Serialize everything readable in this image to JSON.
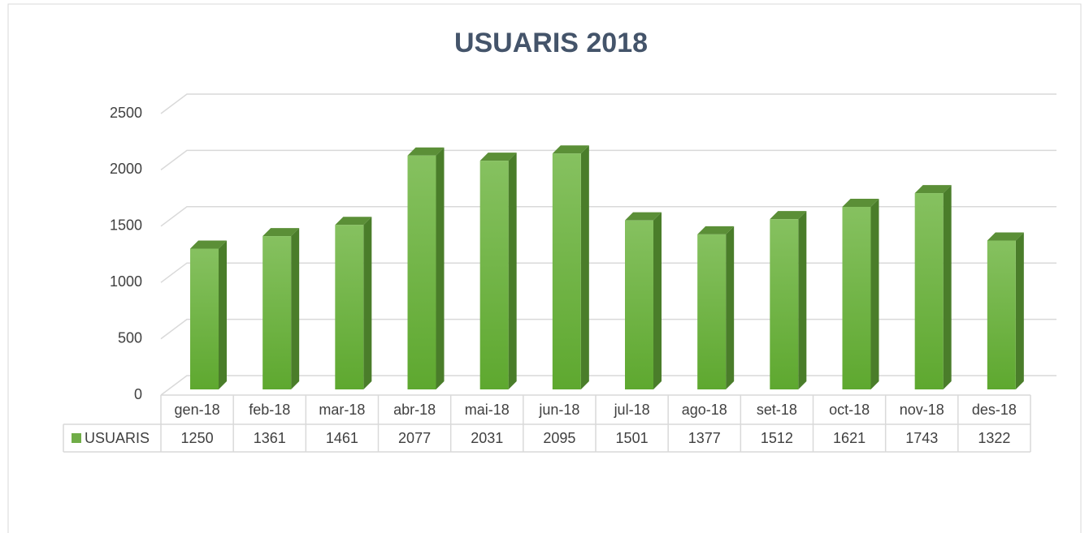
{
  "chart_data": {
    "type": "bar3d",
    "title": "USUARIS 2018",
    "categories": [
      "gen-18",
      "feb-18",
      "mar-18",
      "abr-18",
      "mai-18",
      "jun-18",
      "jul-18",
      "ago-18",
      "set-18",
      "oct-18",
      "nov-18",
      "des-18"
    ],
    "series": [
      {
        "name": "USUARIS",
        "color": "#70ad47",
        "values": [
          1250,
          1361,
          1461,
          2077,
          2031,
          2095,
          1501,
          1377,
          1512,
          1621,
          1743,
          1322
        ]
      }
    ],
    "ylim": [
      0,
      2500
    ],
    "yticks": [
      0,
      500,
      1000,
      1500,
      2000,
      2500
    ],
    "grid": true,
    "legend": "table"
  }
}
